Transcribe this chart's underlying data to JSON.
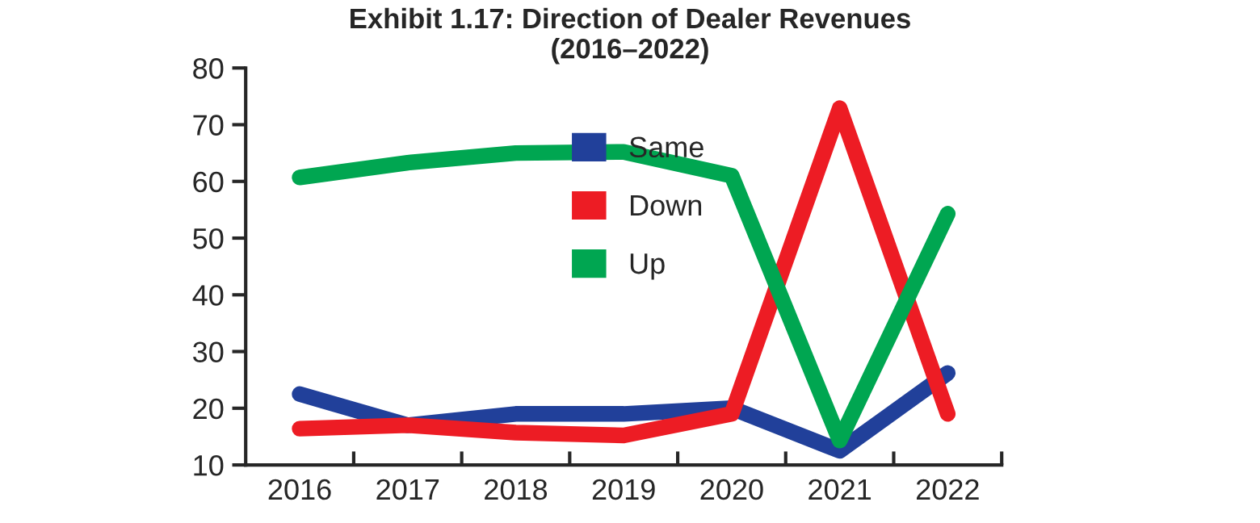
{
  "chart_data": {
    "type": "line",
    "title": "Exhibit 1.17: Direction of Dealer Revenues\n(2016–2022)",
    "categories": [
      "2016",
      "2017",
      "2018",
      "2019",
      "2020",
      "2021",
      "2022"
    ],
    "series": [
      {
        "name": "Same",
        "color": "#21409a",
        "values": [
          22.5,
          17,
          19,
          19,
          20,
          12.5,
          26.2
        ]
      },
      {
        "name": "Down",
        "color": "#ed1c24",
        "values": [
          16.4,
          17,
          15.7,
          15.2,
          19,
          72.9,
          19
        ]
      },
      {
        "name": "Up",
        "color": "#00a651",
        "values": [
          60.7,
          63.3,
          65,
          65.2,
          61,
          14.3,
          54.3
        ]
      }
    ],
    "ylim": [
      10,
      80
    ],
    "yticks": [
      10,
      20,
      30,
      40,
      50,
      60,
      70,
      80
    ],
    "grid": false,
    "legend": "center",
    "line_style": "solid",
    "marker": "none"
  }
}
